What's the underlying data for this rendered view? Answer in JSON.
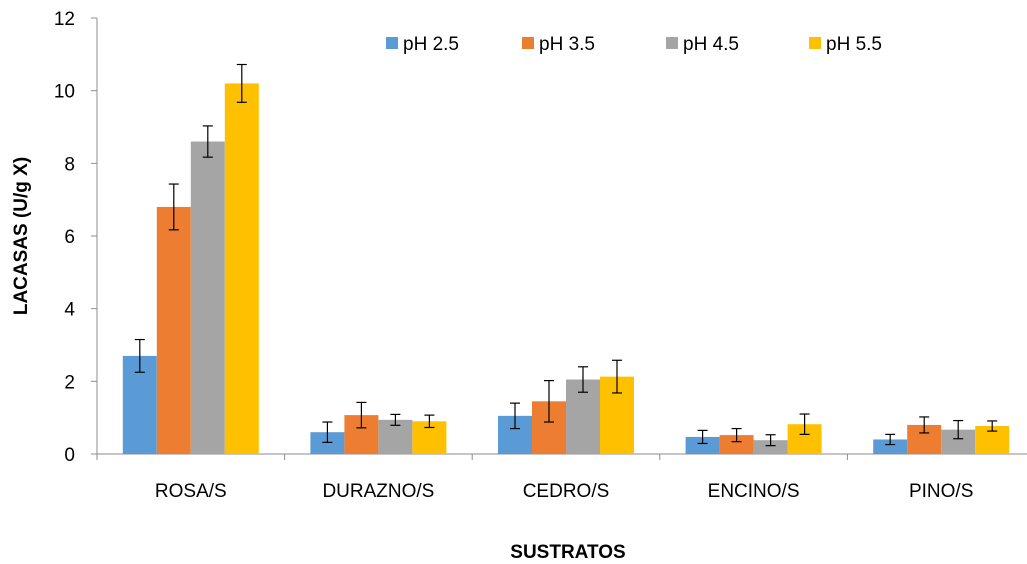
{
  "chart_data": {
    "type": "bar",
    "title": "",
    "xlabel": "SUSTRATOS",
    "ylabel": "LACASAS (U/g X)",
    "ylim": [
      0,
      12
    ],
    "yticks": [
      0,
      2,
      4,
      6,
      8,
      10,
      12
    ],
    "grid": false,
    "legend_position": "top",
    "categories": [
      "ROSA/S",
      "DURAZNO/S",
      "CEDRO/S",
      "ENCINO/S",
      "PINO/S"
    ],
    "series": [
      {
        "name": "pH 2.5",
        "color": "#5B9BD5",
        "values": [
          2.7,
          0.6,
          1.05,
          0.47,
          0.4
        ],
        "errors": [
          0.45,
          0.28,
          0.35,
          0.18,
          0.14
        ]
      },
      {
        "name": "pH 3.5",
        "color": "#ED7D31",
        "values": [
          6.8,
          1.07,
          1.45,
          0.52,
          0.8
        ],
        "errors": [
          0.63,
          0.35,
          0.57,
          0.18,
          0.22
        ]
      },
      {
        "name": "pH 4.5",
        "color": "#A5A5A5",
        "values": [
          8.6,
          0.94,
          2.05,
          0.38,
          0.67
        ],
        "errors": [
          0.43,
          0.15,
          0.35,
          0.15,
          0.25
        ]
      },
      {
        "name": "pH 5.5",
        "color": "#FFC000",
        "values": [
          10.2,
          0.9,
          2.13,
          0.82,
          0.77
        ],
        "errors": [
          0.52,
          0.17,
          0.45,
          0.28,
          0.14
        ]
      }
    ]
  }
}
